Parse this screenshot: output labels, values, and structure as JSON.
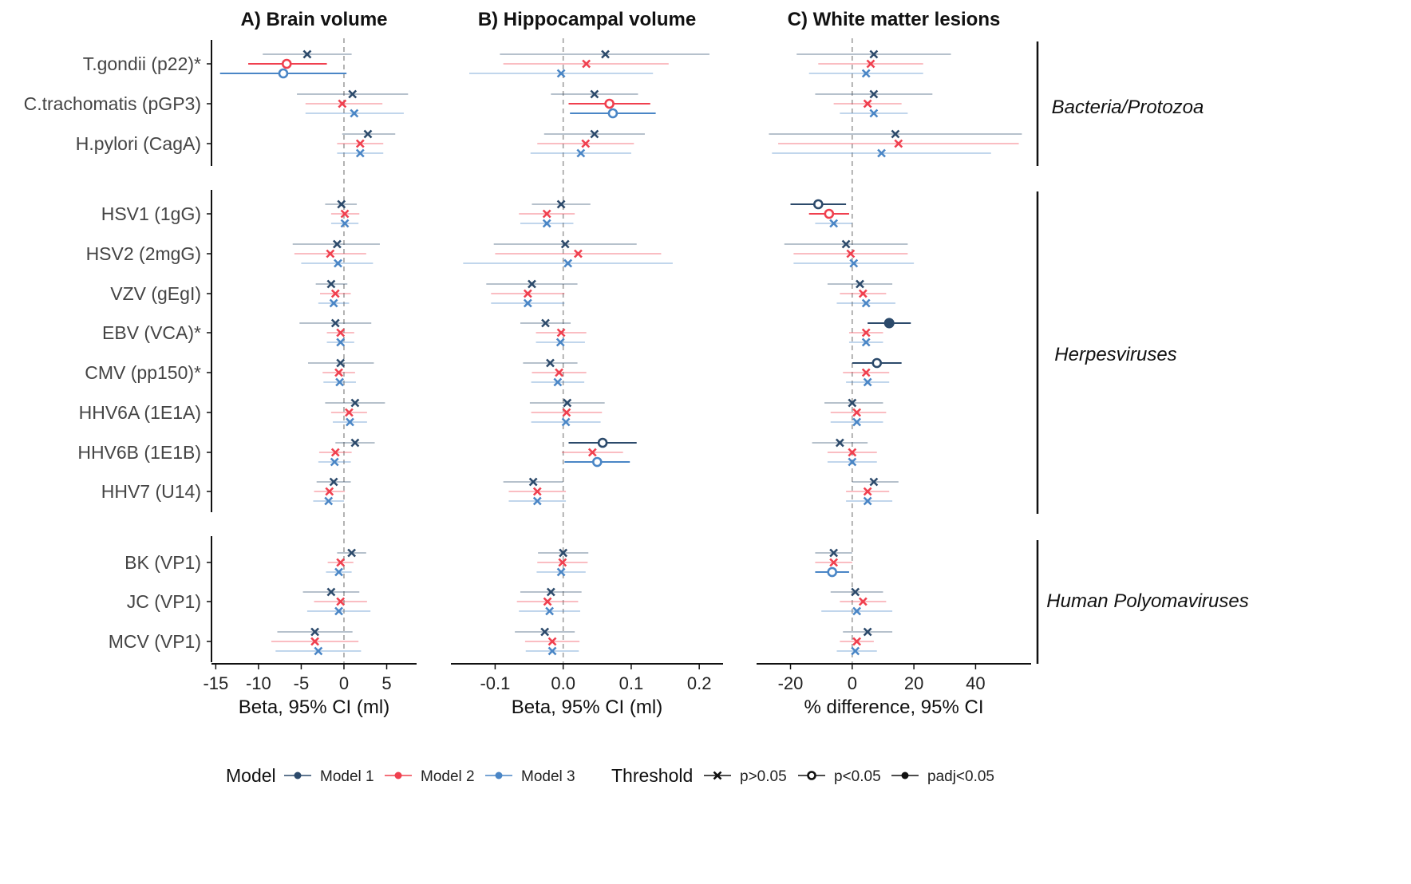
{
  "chart_data": {
    "type": "forest",
    "rows": [
      "T.gondii (p22)*",
      "C.trachomatis (pGP3)",
      "H.pylori (CagA)",
      "HSV1 (1gG)",
      "HSV2 (2mgG)",
      "VZV (gEgI)",
      "EBV (VCA)*",
      "CMV (pp150)*",
      "HHV6A (1E1A)",
      "HHV6B (1E1B)",
      "HHV7 (U14)",
      "BK (VP1)",
      "JC (VP1)",
      "MCV (VP1)"
    ],
    "groups": [
      {
        "label": "Bacteria/Protozoa",
        "rows": [
          0,
          2
        ]
      },
      {
        "label": "Herpesviruses",
        "rows": [
          3,
          10
        ]
      },
      {
        "label": "Human Polyomaviruses",
        "rows": [
          11,
          13
        ]
      }
    ],
    "models": [
      {
        "name": "Model 1",
        "color": "#2c4a6b"
      },
      {
        "name": "Model 2",
        "color": "#f0404f"
      },
      {
        "name": "Model 3",
        "color": "#4a86c6"
      }
    ],
    "panels": [
      {
        "title": "A) Brain volume",
        "xlabel": "Beta, 95% CI (ml)",
        "xlim": [
          -15.5,
          8.5
        ],
        "ticks": [
          -15,
          -10,
          -5,
          0,
          5
        ],
        "tick_labels": [
          "-15",
          "-10",
          "-5",
          "0",
          "5"
        ],
        "estimates": [
          [
            [
              -4.3,
              -9.5,
              0.9,
              "x"
            ],
            [
              -6.7,
              -11.2,
              -2.0,
              "o"
            ],
            [
              -7.1,
              -14.5,
              0.3,
              "o"
            ]
          ],
          [
            [
              1.0,
              -5.5,
              7.5,
              "x"
            ],
            [
              -0.2,
              -4.5,
              4.5,
              "x"
            ],
            [
              1.2,
              -4.5,
              7.0,
              "x"
            ]
          ],
          [
            [
              2.8,
              -0.2,
              6.0,
              "x"
            ],
            [
              1.9,
              -0.8,
              4.6,
              "x"
            ],
            [
              1.9,
              -0.8,
              4.6,
              "x"
            ]
          ],
          [
            [
              -0.3,
              -2.2,
              1.5,
              "x"
            ],
            [
              0.1,
              -1.5,
              1.8,
              "x"
            ],
            [
              0.1,
              -1.5,
              1.7,
              "x"
            ]
          ],
          [
            [
              -0.8,
              -6.0,
              4.2,
              "x"
            ],
            [
              -1.6,
              -5.8,
              2.6,
              "x"
            ],
            [
              -0.7,
              -5.0,
              3.4,
              "x"
            ]
          ],
          [
            [
              -1.5,
              -3.3,
              0.4,
              "x"
            ],
            [
              -1.0,
              -2.8,
              0.8,
              "x"
            ],
            [
              -1.2,
              -3.0,
              0.6,
              "x"
            ]
          ],
          [
            [
              -1.0,
              -5.2,
              3.2,
              "x"
            ],
            [
              -0.4,
              -2.0,
              1.2,
              "x"
            ],
            [
              -0.4,
              -2.0,
              1.2,
              "x"
            ]
          ],
          [
            [
              -0.4,
              -4.2,
              3.5,
              "x"
            ],
            [
              -0.6,
              -2.5,
              1.3,
              "x"
            ],
            [
              -0.5,
              -2.4,
              1.4,
              "x"
            ]
          ],
          [
            [
              1.3,
              -2.2,
              4.8,
              "x"
            ],
            [
              0.6,
              -1.5,
              2.7,
              "x"
            ],
            [
              0.7,
              -1.3,
              2.7,
              "x"
            ]
          ],
          [
            [
              1.3,
              -1.0,
              3.6,
              "x"
            ],
            [
              -1.0,
              -2.9,
              0.9,
              "x"
            ],
            [
              -1.1,
              -3.0,
              0.8,
              "x"
            ]
          ],
          [
            [
              -1.2,
              -3.2,
              0.8,
              "x"
            ],
            [
              -1.7,
              -3.5,
              0.1,
              "x"
            ],
            [
              -1.8,
              -3.6,
              0.0,
              "x"
            ]
          ],
          [
            [
              0.9,
              -0.8,
              2.6,
              "x"
            ],
            [
              -0.4,
              -1.9,
              1.1,
              "x"
            ],
            [
              -0.6,
              -2.1,
              0.9,
              "x"
            ]
          ],
          [
            [
              -1.5,
              -4.8,
              1.8,
              "x"
            ],
            [
              -0.4,
              -3.5,
              2.7,
              "x"
            ],
            [
              -0.6,
              -4.3,
              3.1,
              "x"
            ]
          ],
          [
            [
              -3.4,
              -7.8,
              1.0,
              "x"
            ],
            [
              -3.4,
              -8.5,
              1.7,
              "x"
            ],
            [
              -3.0,
              -8.0,
              2.0,
              "x"
            ]
          ]
        ]
      },
      {
        "title": "B) Hippocampal volume",
        "xlabel": "Beta, 95% CI (ml)",
        "xlim": [
          -0.165,
          0.235
        ],
        "ticks": [
          -0.1,
          0.0,
          0.1,
          0.2
        ],
        "tick_labels": [
          "-0.1",
          "0.0",
          "0.1",
          "0.2"
        ],
        "estimates": [
          [
            [
              0.062,
              -0.093,
              0.215,
              "x"
            ],
            [
              0.034,
              -0.088,
              0.155,
              "x"
            ],
            [
              -0.003,
              -0.138,
              0.132,
              "x"
            ]
          ],
          [
            [
              0.046,
              -0.018,
              0.11,
              "x"
            ],
            [
              0.068,
              0.008,
              0.128,
              "o"
            ],
            [
              0.073,
              0.01,
              0.136,
              "o"
            ]
          ],
          [
            [
              0.046,
              -0.028,
              0.12,
              "x"
            ],
            [
              0.033,
              -0.038,
              0.104,
              "x"
            ],
            [
              0.026,
              -0.048,
              0.1,
              "x"
            ]
          ],
          [
            [
              -0.003,
              -0.046,
              0.04,
              "x"
            ],
            [
              -0.024,
              -0.065,
              0.017,
              "x"
            ],
            [
              -0.024,
              -0.063,
              0.015,
              "x"
            ]
          ],
          [
            [
              0.003,
              -0.102,
              0.108,
              "x"
            ],
            [
              0.022,
              -0.1,
              0.144,
              "x"
            ],
            [
              0.007,
              -0.147,
              0.161,
              "x"
            ]
          ],
          [
            [
              -0.046,
              -0.113,
              0.021,
              "x"
            ],
            [
              -0.052,
              -0.106,
              0.002,
              "x"
            ],
            [
              -0.052,
              -0.106,
              0.002,
              "x"
            ]
          ],
          [
            [
              -0.026,
              -0.063,
              0.011,
              "x"
            ],
            [
              -0.003,
              -0.04,
              0.034,
              "x"
            ],
            [
              -0.004,
              -0.04,
              0.032,
              "x"
            ]
          ],
          [
            [
              -0.019,
              -0.059,
              0.021,
              "x"
            ],
            [
              -0.006,
              -0.046,
              0.034,
              "x"
            ],
            [
              -0.008,
              -0.047,
              0.031,
              "x"
            ]
          ],
          [
            [
              0.006,
              -0.049,
              0.061,
              "x"
            ],
            [
              0.005,
              -0.047,
              0.057,
              "x"
            ],
            [
              0.004,
              -0.047,
              0.055,
              "x"
            ]
          ],
          [
            [
              0.058,
              0.008,
              0.108,
              "o"
            ],
            [
              0.043,
              -0.002,
              0.088,
              "x"
            ],
            [
              0.05,
              0.002,
              0.098,
              "o"
            ]
          ],
          [
            [
              -0.044,
              -0.088,
              0.0,
              "x"
            ],
            [
              -0.038,
              -0.08,
              0.004,
              "x"
            ],
            [
              -0.038,
              -0.08,
              0.004,
              "x"
            ]
          ],
          [
            [
              0.0,
              -0.037,
              0.037,
              "x"
            ],
            [
              -0.001,
              -0.038,
              0.036,
              "x"
            ],
            [
              -0.003,
              -0.039,
              0.033,
              "x"
            ]
          ],
          [
            [
              -0.018,
              -0.063,
              0.027,
              "x"
            ],
            [
              -0.023,
              -0.068,
              0.022,
              "x"
            ],
            [
              -0.02,
              -0.065,
              0.025,
              "x"
            ]
          ],
          [
            [
              -0.027,
              -0.071,
              0.017,
              "x"
            ],
            [
              -0.016,
              -0.056,
              0.024,
              "x"
            ],
            [
              -0.016,
              -0.055,
              0.023,
              "x"
            ]
          ]
        ]
      },
      {
        "title": "C) White matter lesions",
        "xlabel": "% difference, 95% CI",
        "xlim": [
          -31,
          58
        ],
        "ticks": [
          -20,
          0,
          20,
          40
        ],
        "tick_labels": [
          "-20",
          "0",
          "20",
          "40"
        ],
        "estimates": [
          [
            [
              7,
              -18,
              32,
              "x"
            ],
            [
              6,
              -11,
              23,
              "x"
            ],
            [
              4.5,
              -14,
              23,
              "x"
            ]
          ],
          [
            [
              7,
              -12,
              26,
              "x"
            ],
            [
              5,
              -6,
              16,
              "x"
            ],
            [
              7,
              -4,
              18,
              "x"
            ]
          ],
          [
            [
              14,
              -27,
              55,
              "x"
            ],
            [
              15,
              -24,
              54,
              "x"
            ],
            [
              9.5,
              -26,
              45,
              "x"
            ]
          ],
          [
            [
              -11,
              -20,
              -2,
              "o"
            ],
            [
              -7.5,
              -14,
              -1,
              "o"
            ],
            [
              -6,
              -12,
              0,
              "x"
            ]
          ],
          [
            [
              -2,
              -22,
              18,
              "x"
            ],
            [
              -0.5,
              -19,
              18,
              "x"
            ],
            [
              0.5,
              -19,
              20,
              "x"
            ]
          ],
          [
            [
              2.5,
              -8,
              13,
              "x"
            ],
            [
              3.5,
              -4,
              11,
              "x"
            ],
            [
              4.5,
              -5,
              14,
              "x"
            ]
          ],
          [
            [
              12,
              5,
              19,
              "padj"
            ],
            [
              4.5,
              -1,
              10,
              "x"
            ],
            [
              4.5,
              -1,
              10,
              "x"
            ]
          ],
          [
            [
              8,
              0,
              16,
              "o"
            ],
            [
              4.5,
              -3,
              12,
              "x"
            ],
            [
              5,
              -2,
              12,
              "x"
            ]
          ],
          [
            [
              0,
              -9,
              10,
              "x"
            ],
            [
              1.5,
              -7,
              11,
              "x"
            ],
            [
              1.5,
              -7,
              10,
              "x"
            ]
          ],
          [
            [
              -4,
              -13,
              5,
              "x"
            ],
            [
              0,
              -8,
              8,
              "x"
            ],
            [
              0,
              -8,
              8,
              "x"
            ]
          ],
          [
            [
              7,
              0,
              15,
              "x"
            ],
            [
              5,
              -2,
              12,
              "x"
            ],
            [
              5,
              -2,
              13,
              "x"
            ]
          ],
          [
            [
              -6,
              -12,
              0,
              "x"
            ],
            [
              -6,
              -12,
              0,
              "x"
            ],
            [
              -6.5,
              -12,
              -1,
              "o"
            ]
          ],
          [
            [
              1,
              -7,
              10,
              "x"
            ],
            [
              3.5,
              -4,
              11,
              "x"
            ],
            [
              1.5,
              -10,
              13,
              "x"
            ]
          ],
          [
            [
              5,
              -3,
              13,
              "x"
            ],
            [
              1.5,
              -4,
              7,
              "x"
            ],
            [
              1,
              -5,
              8,
              "x"
            ]
          ]
        ]
      }
    ],
    "legend": {
      "model_title": "Model",
      "model_items": [
        "Model 1",
        "Model 2",
        "Model 3"
      ],
      "threshold_title": "Threshold",
      "threshold_items": [
        {
          "label": "p>0.05",
          "shape": "x"
        },
        {
          "label": "p<0.05",
          "shape": "o"
        },
        {
          "label": "padj<0.05",
          "shape": "padj"
        }
      ]
    }
  }
}
